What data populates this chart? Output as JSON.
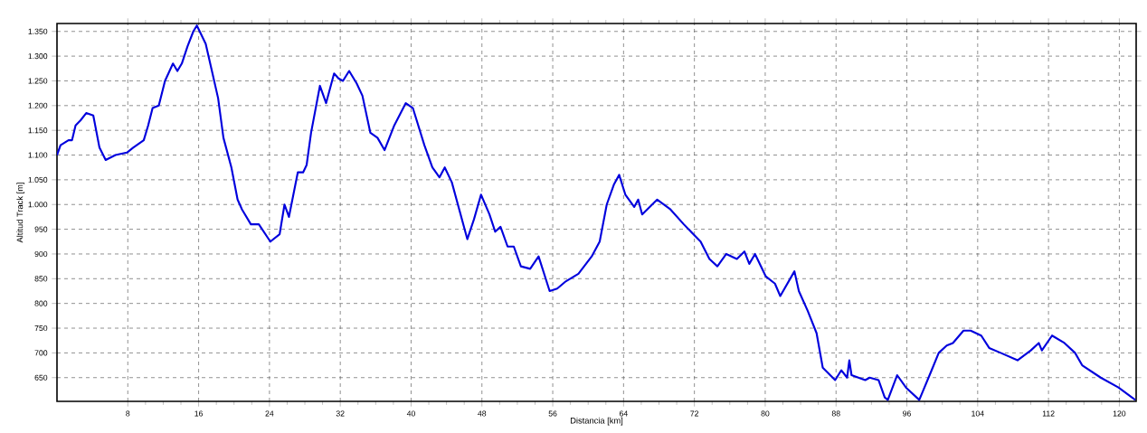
{
  "chart_data": {
    "type": "line",
    "xlabel": "Distancia [km]",
    "ylabel": "Altitud Track [m]",
    "xlim": [
      0,
      121.9
    ],
    "ylim": [
      602,
      1366
    ],
    "xticks": [
      8,
      16,
      24,
      32,
      40,
      48,
      56,
      64,
      72,
      80,
      88,
      96,
      104,
      112,
      120
    ],
    "yticks": [
      {
        "value": 650,
        "label": "650"
      },
      {
        "value": 700,
        "label": "700"
      },
      {
        "value": 750,
        "label": "750"
      },
      {
        "value": 800,
        "label": "800"
      },
      {
        "value": 850,
        "label": "850"
      },
      {
        "value": 900,
        "label": "900"
      },
      {
        "value": 950,
        "label": "950"
      },
      {
        "value": 1000,
        "label": "1.000"
      },
      {
        "value": 1050,
        "label": "1.050"
      },
      {
        "value": 1100,
        "label": "1.100"
      },
      {
        "value": 1150,
        "label": "1.150"
      },
      {
        "value": 1200,
        "label": "1.200"
      },
      {
        "value": 1250,
        "label": "1.250"
      },
      {
        "value": 1300,
        "label": "1.300"
      },
      {
        "value": 1350,
        "label": "1.350"
      }
    ],
    "grid": true,
    "marker": "none",
    "line_style": "solid",
    "series": [
      {
        "color": "#0000dd",
        "x": [
          0,
          0.4,
          1.3,
          1.7,
          2.1,
          2.65,
          3.3,
          4.1,
          4.8,
          5.5,
          6.6,
          7.9,
          8.6,
          9.8,
          10.3,
          10.8,
          11.5,
          12.2,
          13.1,
          13.6,
          14.1,
          14.75,
          15.4,
          15.8,
          16.8,
          17.5,
          18.2,
          18.8,
          19.7,
          20.4,
          20.9,
          21.9,
          22.8,
          24.1,
          25.15,
          25.7,
          26.2,
          27.2,
          27.8,
          28.2,
          28.7,
          29.7,
          30.4,
          31.3,
          31.8,
          32.3,
          33.0,
          33.85,
          34.5,
          35.4,
          36.2,
          37.0,
          38.1,
          39.4,
          40.2,
          41.5,
          42.4,
          43.2,
          43.8,
          44.6,
          46.35,
          47.1,
          47.9,
          48.85,
          49.5,
          50.1,
          50.9,
          51.6,
          52.4,
          53.45,
          54.4,
          55.65,
          56.5,
          57.5,
          58.9,
          60.4,
          61.3,
          62.1,
          62.9,
          63.5,
          64.2,
          65.2,
          65.65,
          66.1,
          67.8,
          69.3,
          70.8,
          72.7,
          73.7,
          74.6,
          75.6,
          76.8,
          77.65,
          78.2,
          78.85,
          80.05,
          81.1,
          81.7,
          83.3,
          83.8,
          84.8,
          85.8,
          86.5,
          87.9,
          88.6,
          89.25,
          89.5,
          89.75,
          91.3,
          91.8,
          92.8,
          93.5,
          93.85,
          94.9,
          95.9,
          97.4,
          98.8,
          99.6,
          100.5,
          101.2,
          102.4,
          103.2,
          104.4,
          105.3,
          106.6,
          108.5,
          110.0,
          110.9,
          111.25,
          112.4,
          113.8,
          115.0,
          115.8,
          117.9,
          119.9,
          121.8
        ],
        "values": [
          1100,
          1120,
          1130,
          1130,
          1160,
          1170,
          1185,
          1180,
          1115,
          1090,
          1100,
          1105,
          1115,
          1130,
          1160,
          1195,
          1200,
          1250,
          1285,
          1270,
          1285,
          1320,
          1350,
          1362,
          1325,
          1270,
          1215,
          1135,
          1075,
          1010,
          990,
          960,
          960,
          925,
          940,
          1000,
          975,
          1065,
          1065,
          1080,
          1145,
          1240,
          1205,
          1265,
          1255,
          1250,
          1270,
          1245,
          1220,
          1145,
          1135,
          1110,
          1160,
          1205,
          1195,
          1120,
          1075,
          1055,
          1075,
          1045,
          930,
          970,
          1020,
          980,
          945,
          955,
          915,
          915,
          875,
          870,
          895,
          825,
          830,
          845,
          860,
          895,
          925,
          1000,
          1040,
          1060,
          1020,
          995,
          1010,
          980,
          1010,
          990,
          960,
          925,
          890,
          875,
          900,
          890,
          905,
          880,
          900,
          855,
          840,
          815,
          865,
          825,
          785,
          740,
          670,
          645,
          665,
          650,
          685,
          655,
          645,
          650,
          645,
          610,
          605,
          655,
          630,
          605,
          665,
          700,
          715,
          720,
          745,
          745,
          735,
          710,
          700,
          685,
          705,
          720,
          705,
          735,
          720,
          700,
          675,
          650,
          630,
          605
        ]
      }
    ]
  }
}
